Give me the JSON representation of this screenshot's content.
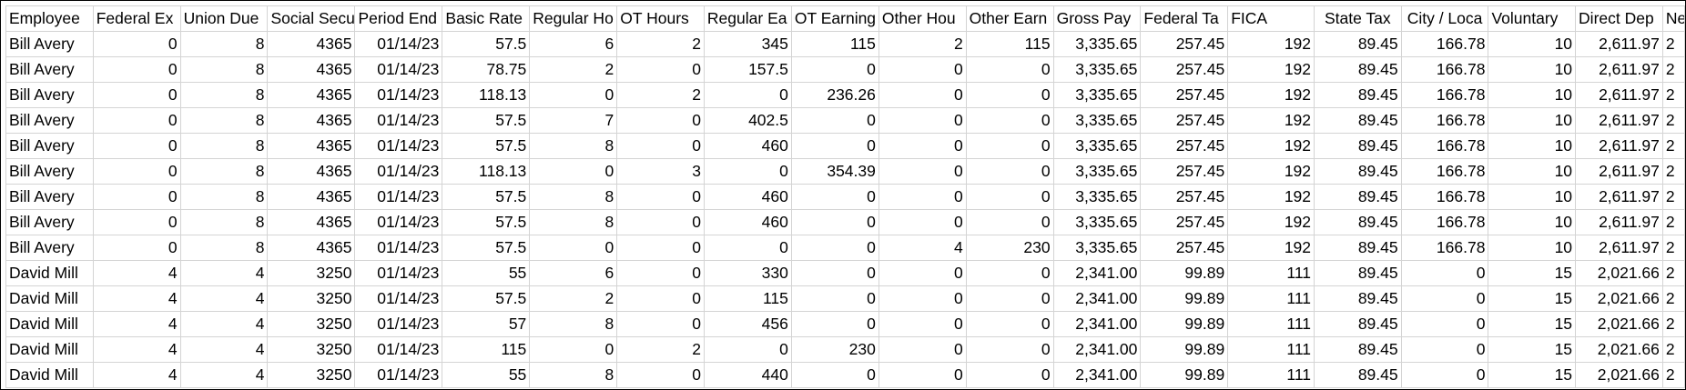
{
  "table": {
    "header": [
      "Employee",
      "Federal Ex",
      "Union Due",
      "Social Secu",
      "Period End",
      "Basic Rate",
      "Regular Ho",
      "OT Hours",
      "Regular Ea",
      "OT Earning",
      "Other Hou",
      "Other Earn",
      "Gross Pay",
      "Federal Ta",
      "FICA",
      "State Tax",
      "City / Loca",
      "Voluntary",
      "Direct Dep",
      "Ne"
    ],
    "rows": [
      [
        "Bill Avery",
        "0",
        "8",
        "4365",
        "01/14/23",
        "57.5",
        "6",
        "2",
        "345",
        "115",
        "2",
        "115",
        "3,335.65",
        "257.45",
        "192",
        "89.45",
        "166.78",
        "10",
        "2,611.97",
        "2"
      ],
      [
        "Bill Avery",
        "0",
        "8",
        "4365",
        "01/14/23",
        "78.75",
        "2",
        "0",
        "157.5",
        "0",
        "0",
        "0",
        "3,335.65",
        "257.45",
        "192",
        "89.45",
        "166.78",
        "10",
        "2,611.97",
        "2"
      ],
      [
        "Bill Avery",
        "0",
        "8",
        "4365",
        "01/14/23",
        "118.13",
        "0",
        "2",
        "0",
        "236.26",
        "0",
        "0",
        "3,335.65",
        "257.45",
        "192",
        "89.45",
        "166.78",
        "10",
        "2,611.97",
        "2"
      ],
      [
        "Bill Avery",
        "0",
        "8",
        "4365",
        "01/14/23",
        "57.5",
        "7",
        "0",
        "402.5",
        "0",
        "0",
        "0",
        "3,335.65",
        "257.45",
        "192",
        "89.45",
        "166.78",
        "10",
        "2,611.97",
        "2"
      ],
      [
        "Bill Avery",
        "0",
        "8",
        "4365",
        "01/14/23",
        "57.5",
        "8",
        "0",
        "460",
        "0",
        "0",
        "0",
        "3,335.65",
        "257.45",
        "192",
        "89.45",
        "166.78",
        "10",
        "2,611.97",
        "2"
      ],
      [
        "Bill Avery",
        "0",
        "8",
        "4365",
        "01/14/23",
        "118.13",
        "0",
        "3",
        "0",
        "354.39",
        "0",
        "0",
        "3,335.65",
        "257.45",
        "192",
        "89.45",
        "166.78",
        "10",
        "2,611.97",
        "2"
      ],
      [
        "Bill Avery",
        "0",
        "8",
        "4365",
        "01/14/23",
        "57.5",
        "8",
        "0",
        "460",
        "0",
        "0",
        "0",
        "3,335.65",
        "257.45",
        "192",
        "89.45",
        "166.78",
        "10",
        "2,611.97",
        "2"
      ],
      [
        "Bill Avery",
        "0",
        "8",
        "4365",
        "01/14/23",
        "57.5",
        "8",
        "0",
        "460",
        "0",
        "0",
        "0",
        "3,335.65",
        "257.45",
        "192",
        "89.45",
        "166.78",
        "10",
        "2,611.97",
        "2"
      ],
      [
        "Bill Avery",
        "0",
        "8",
        "4365",
        "01/14/23",
        "57.5",
        "0",
        "0",
        "0",
        "0",
        "4",
        "230",
        "3,335.65",
        "257.45",
        "192",
        "89.45",
        "166.78",
        "10",
        "2,611.97",
        "2"
      ],
      [
        "David Mill",
        "4",
        "4",
        "3250",
        "01/14/23",
        "55",
        "6",
        "0",
        "330",
        "0",
        "0",
        "0",
        "2,341.00",
        "99.89",
        "111",
        "89.45",
        "0",
        "15",
        "2,021.66",
        "2"
      ],
      [
        "David Mill",
        "4",
        "4",
        "3250",
        "01/14/23",
        "57.5",
        "2",
        "0",
        "115",
        "0",
        "0",
        "0",
        "2,341.00",
        "99.89",
        "111",
        "89.45",
        "0",
        "15",
        "2,021.66",
        "2"
      ],
      [
        "David Mill",
        "4",
        "4",
        "3250",
        "01/14/23",
        "57",
        "8",
        "0",
        "456",
        "0",
        "0",
        "0",
        "2,341.00",
        "99.89",
        "111",
        "89.45",
        "0",
        "15",
        "2,021.66",
        "2"
      ],
      [
        "David Mill",
        "4",
        "4",
        "3250",
        "01/14/23",
        "115",
        "0",
        "2",
        "0",
        "230",
        "0",
        "0",
        "2,341.00",
        "99.89",
        "111",
        "89.45",
        "0",
        "15",
        "2,021.66",
        "2"
      ],
      [
        "David Mill",
        "4",
        "4",
        "3250",
        "01/14/23",
        "55",
        "8",
        "0",
        "440",
        "0",
        "0",
        "0",
        "2,341.00",
        "99.89",
        "111",
        "89.45",
        "0",
        "15",
        "2,021.66",
        "2"
      ]
    ]
  }
}
